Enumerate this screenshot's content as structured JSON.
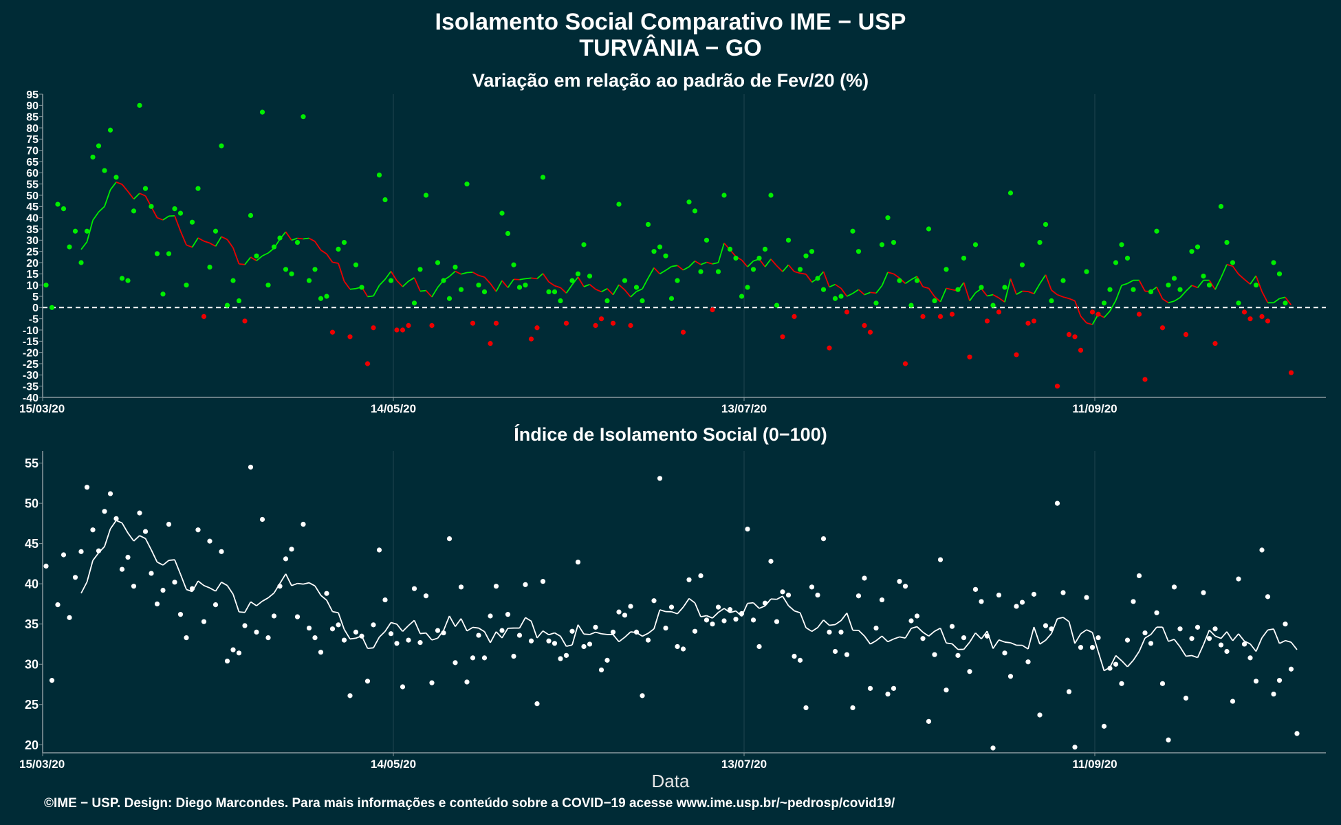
{
  "title_line1": "Isolamento Social Comparativo IME − USP",
  "title_line2": "TURVÂNIA − GO",
  "xlabel": "Data",
  "footer": "©IME − USP. Design: Diego Marcondes. Para mais informações e conteúdo sobre a COVID−19 acesse www.ime.usp.br/~pedrosp/covid19/",
  "colors": {
    "background": "#002b36",
    "positive": "#00ee00",
    "negative": "#ee0000",
    "index": "#ffffff",
    "grid": "#1f4450"
  },
  "x_ticks": [
    "15/03/20",
    "14/05/20",
    "13/07/20",
    "11/09/20"
  ],
  "chart_data": [
    {
      "type": "scatter",
      "title": "Variação em relação ao padrão de Fev/20 (%)",
      "x_start": "15/03/20",
      "x_unit": "day",
      "ylim": [
        -40,
        95
      ],
      "y_ticks": [
        -40,
        -35,
        -30,
        -25,
        -20,
        -15,
        -10,
        -5,
        0,
        5,
        10,
        15,
        20,
        25,
        30,
        35,
        40,
        45,
        50,
        55,
        60,
        65,
        70,
        75,
        80,
        85,
        90,
        95
      ],
      "reference_line": 0,
      "smooth": "7-day moving average",
      "values": [
        10,
        0,
        46,
        44,
        27,
        34,
        20,
        34,
        67,
        72,
        61,
        79,
        58,
        13,
        12,
        43,
        90,
        53,
        45,
        24,
        6,
        24,
        44,
        42,
        10,
        38,
        53,
        -4,
        18,
        34,
        72,
        1,
        12,
        3,
        -6,
        41,
        23,
        87,
        10,
        27,
        31,
        17,
        15,
        29,
        85,
        12,
        17,
        4,
        5,
        -11,
        26,
        29,
        -13,
        19,
        9,
        -25,
        -9,
        59,
        48,
        12,
        -10,
        -10,
        -8,
        2,
        17,
        50,
        -8,
        20,
        12,
        4,
        18,
        8,
        55,
        -7,
        10,
        7,
        -16,
        -7,
        42,
        33,
        19,
        9,
        10,
        -14,
        -9,
        58,
        7,
        7,
        3,
        -7,
        12,
        15,
        28,
        14,
        -8,
        -5,
        3,
        -7,
        46,
        12,
        -8,
        9,
        3,
        37,
        25,
        27,
        23,
        4,
        12,
        -11,
        47,
        43,
        16,
        30,
        -1,
        16,
        50,
        26,
        22,
        5,
        9,
        17,
        22,
        26,
        50,
        1,
        -13,
        30,
        -4,
        17,
        23,
        25,
        13,
        8,
        -18,
        4,
        5,
        -2,
        34,
        25,
        -8,
        -11,
        2,
        28,
        40,
        29,
        12,
        -25,
        1,
        12,
        -4,
        35,
        3,
        -4,
        17,
        -3,
        8,
        22,
        -22,
        28,
        9,
        -6,
        1,
        -2,
        9,
        51,
        -21,
        19,
        -7,
        -6,
        29,
        37,
        3,
        -35,
        12,
        -12,
        -13,
        -19,
        16,
        -2,
        -3,
        2,
        8,
        20,
        28,
        22,
        8,
        -3,
        -32,
        7,
        34,
        -9,
        10,
        13,
        8,
        -12,
        25,
        27,
        14,
        10,
        -16,
        45,
        29,
        20,
        2,
        -2,
        -5,
        10,
        -4,
        -6,
        20,
        15,
        2,
        -29
      ]
    },
    {
      "type": "scatter",
      "title": "Índice de Isolamento Social (0−100)",
      "x_start": "15/03/20",
      "x_unit": "day",
      "ylim": [
        19,
        56.5
      ],
      "y_ticks": [
        20,
        25,
        30,
        35,
        40,
        45,
        50,
        55
      ],
      "smooth": "7-day moving average",
      "values": [
        42.2,
        28.0,
        37.4,
        43.6,
        35.8,
        40.8,
        44.0,
        52.0,
        46.7,
        44.1,
        49.0,
        51.2,
        48.1,
        41.8,
        43.3,
        39.7,
        48.8,
        46.5,
        41.3,
        37.5,
        39.2,
        47.4,
        40.2,
        36.2,
        33.3,
        39.4,
        46.7,
        35.3,
        45.3,
        37.4,
        44.0,
        30.4,
        31.8,
        31.4,
        34.8,
        54.5,
        34.0,
        48.0,
        33.3,
        36.0,
        39.7,
        43.1,
        44.3,
        35.9,
        47.4,
        34.5,
        33.3,
        31.5,
        38.8,
        34.4,
        34.9,
        33.0,
        26.1,
        34.0,
        33.5,
        27.9,
        34.9,
        44.2,
        38.0,
        33.8,
        32.6,
        27.2,
        33.0,
        39.4,
        32.7,
        38.5,
        27.7,
        34.2,
        33.9,
        45.6,
        30.2,
        39.6,
        27.8,
        30.8,
        33.6,
        30.8,
        36.0,
        39.7,
        34.2,
        36.2,
        31.0,
        33.6,
        39.9,
        32.9,
        25.1,
        40.3,
        32.9,
        32.6,
        30.7,
        31.1,
        34.1,
        42.7,
        32.2,
        32.5,
        34.6,
        29.3,
        30.5,
        34.0,
        36.5,
        36.1,
        37.2,
        34.0,
        26.1,
        33.0,
        37.9,
        53.1,
        34.5,
        37.1,
        32.2,
        31.9,
        40.5,
        34.1,
        41.0,
        35.5,
        35.0,
        37.1,
        35.4,
        36.8,
        35.6,
        36.3,
        46.8,
        35.5,
        32.2,
        37.6,
        42.8,
        35.3,
        39.0,
        38.6,
        31.0,
        30.5,
        24.6,
        39.6,
        38.6,
        45.6,
        34.0,
        31.6,
        34.0,
        31.2,
        24.6,
        38.5,
        40.7,
        27.0,
        34.5,
        38.0,
        26.3,
        27.0,
        40.3,
        39.7,
        35.4,
        36.0,
        33.2,
        22.9,
        31.2,
        43.0,
        26.8,
        34.7,
        31.1,
        33.3,
        29.1,
        39.3,
        37.8,
        33.5,
        19.6,
        38.6,
        31.4,
        28.5,
        37.2,
        37.7,
        30.3,
        38.7,
        23.7,
        34.8,
        34.4,
        50.0,
        38.9,
        26.6,
        19.7,
        32.1,
        38.3,
        32.1,
        33.3,
        22.3,
        29.5,
        30.0,
        27.6,
        33.0,
        37.8,
        41.0,
        33.9,
        32.6,
        36.4,
        27.6,
        20.6,
        39.6,
        34.4,
        25.8,
        33.2,
        34.6,
        38.9,
        33.2,
        34.4,
        32.4,
        31.6,
        25.4,
        40.6,
        32.5,
        30.8,
        27.9,
        44.2,
        38.4,
        26.3,
        28.0,
        35.0,
        29.4,
        21.4
      ]
    }
  ]
}
